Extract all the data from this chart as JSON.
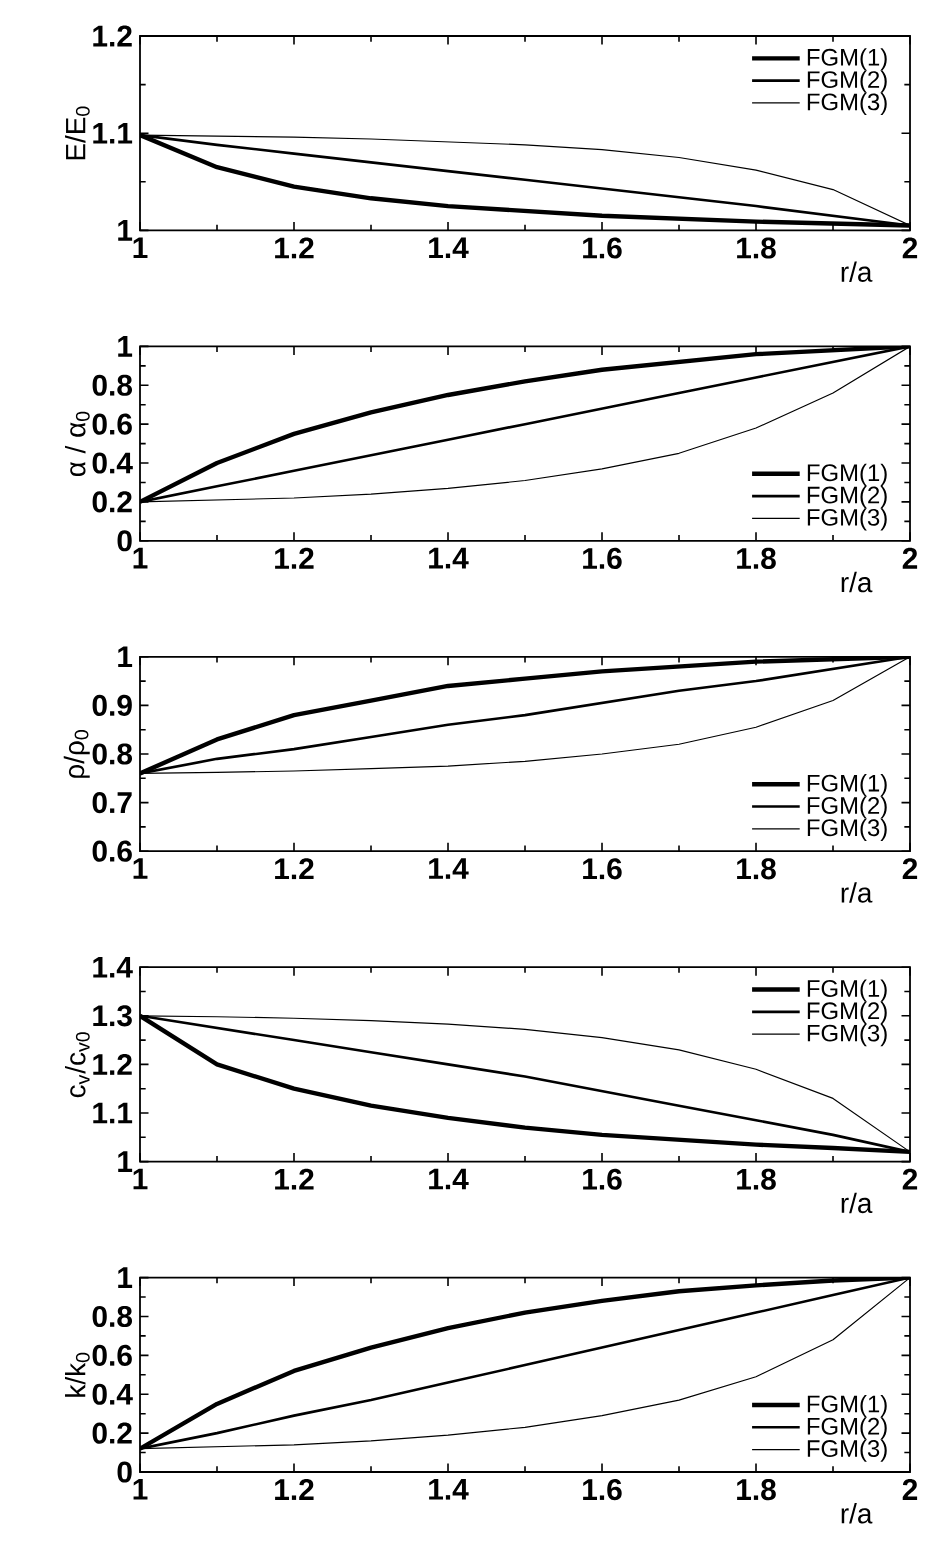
{
  "chart_data": [
    {
      "type": "line",
      "xlabel": "r/a",
      "ylabel": "E/E$_{0}$",
      "x": [
        1,
        1.1,
        1.2,
        1.3,
        1.4,
        1.5,
        1.6,
        1.7,
        1.8,
        1.9,
        2
      ],
      "xlim": [
        1,
        2
      ],
      "ylim": [
        1,
        1.2
      ],
      "xticks": [
        1,
        1.2,
        1.4,
        1.6,
        1.8,
        2
      ],
      "yticks": [
        1,
        1.1,
        1.2
      ],
      "legend": "top right",
      "grid": false,
      "series": [
        {
          "name": "FGM(1)",
          "color": "#000000",
          "values": [
            1.098,
            1.065,
            1.045,
            1.033,
            1.025,
            1.02,
            1.015,
            1.012,
            1.009,
            1.007,
            1.005
          ]
        },
        {
          "name": "FGM(2)",
          "color": "#000000",
          "values": [
            1.098,
            1.088,
            1.079,
            1.07,
            1.061,
            1.052,
            1.043,
            1.034,
            1.025,
            1.015,
            1.005
          ]
        },
        {
          "name": "FGM(3)",
          "color": "#000000",
          "values": [
            1.098,
            1.097,
            1.096,
            1.094,
            1.091,
            1.088,
            1.083,
            1.075,
            1.062,
            1.042,
            1.005
          ]
        }
      ]
    },
    {
      "type": "line",
      "xlabel": "r/a",
      "ylabel": "α / α$_{0}$",
      "x": [
        1,
        1.1,
        1.2,
        1.3,
        1.4,
        1.5,
        1.6,
        1.7,
        1.8,
        1.9,
        2
      ],
      "xlim": [
        1,
        2
      ],
      "ylim": [
        0,
        1
      ],
      "xticks": [
        1,
        1.2,
        1.4,
        1.6,
        1.8,
        2
      ],
      "yticks": [
        0,
        0.2,
        0.4,
        0.6,
        0.8,
        1
      ],
      "legend": "bottom right",
      "grid": false,
      "series": [
        {
          "name": "FGM(1)",
          "color": "#000000",
          "values": [
            0.2,
            0.4,
            0.55,
            0.66,
            0.75,
            0.82,
            0.88,
            0.92,
            0.96,
            0.98,
            1.0
          ]
        },
        {
          "name": "FGM(2)",
          "color": "#000000",
          "values": [
            0.2,
            0.28,
            0.36,
            0.44,
            0.52,
            0.6,
            0.68,
            0.76,
            0.84,
            0.92,
            1.0
          ]
        },
        {
          "name": "FGM(3)",
          "color": "#000000",
          "values": [
            0.2,
            0.21,
            0.22,
            0.24,
            0.27,
            0.31,
            0.37,
            0.45,
            0.58,
            0.76,
            1.0
          ]
        }
      ]
    },
    {
      "type": "line",
      "xlabel": "r/a",
      "ylabel": "ρ/ρ$_{0}$",
      "x": [
        1,
        1.1,
        1.2,
        1.3,
        1.4,
        1.5,
        1.6,
        1.7,
        1.8,
        1.9,
        2
      ],
      "xlim": [
        1,
        2
      ],
      "ylim": [
        0.6,
        1
      ],
      "xticks": [
        1,
        1.2,
        1.4,
        1.6,
        1.8,
        2
      ],
      "yticks": [
        0.6,
        0.7,
        0.8,
        0.9,
        1
      ],
      "legend": "bottom right",
      "grid": false,
      "series": [
        {
          "name": "FGM(1)",
          "color": "#000000",
          "values": [
            0.76,
            0.83,
            0.88,
            0.91,
            0.94,
            0.955,
            0.97,
            0.98,
            0.99,
            0.995,
            1.0
          ]
        },
        {
          "name": "FGM(2)",
          "color": "#000000",
          "values": [
            0.76,
            0.79,
            0.81,
            0.835,
            0.86,
            0.88,
            0.905,
            0.93,
            0.95,
            0.975,
            1.0
          ]
        },
        {
          "name": "FGM(3)",
          "color": "#000000",
          "values": [
            0.76,
            0.762,
            0.765,
            0.77,
            0.775,
            0.785,
            0.8,
            0.82,
            0.855,
            0.91,
            1.0
          ]
        }
      ]
    },
    {
      "type": "line",
      "xlabel": "r/a",
      "ylabel": "c$_{v}$/c$_{v0}$",
      "x": [
        1,
        1.1,
        1.2,
        1.3,
        1.4,
        1.5,
        1.6,
        1.7,
        1.8,
        1.9,
        2
      ],
      "xlim": [
        1,
        2
      ],
      "ylim": [
        1,
        1.4
      ],
      "xticks": [
        1,
        1.2,
        1.4,
        1.6,
        1.8,
        2
      ],
      "yticks": [
        1,
        1.1,
        1.2,
        1.3,
        1.4
      ],
      "legend": "top right",
      "grid": false,
      "series": [
        {
          "name": "FGM(1)",
          "color": "#000000",
          "values": [
            1.3,
            1.2,
            1.15,
            1.115,
            1.09,
            1.07,
            1.055,
            1.045,
            1.035,
            1.028,
            1.02
          ]
        },
        {
          "name": "FGM(2)",
          "color": "#000000",
          "values": [
            1.3,
            1.275,
            1.25,
            1.225,
            1.2,
            1.175,
            1.145,
            1.115,
            1.085,
            1.055,
            1.02
          ]
        },
        {
          "name": "FGM(3)",
          "color": "#000000",
          "values": [
            1.3,
            1.298,
            1.295,
            1.29,
            1.283,
            1.272,
            1.255,
            1.23,
            1.19,
            1.13,
            1.02
          ]
        }
      ]
    },
    {
      "type": "line",
      "xlabel": "r/a",
      "ylabel": "k/k$_{0}$",
      "x": [
        1,
        1.1,
        1.2,
        1.3,
        1.4,
        1.5,
        1.6,
        1.7,
        1.8,
        1.9,
        2
      ],
      "xlim": [
        1,
        2
      ],
      "ylim": [
        0,
        1
      ],
      "xticks": [
        1,
        1.2,
        1.4,
        1.6,
        1.8,
        2
      ],
      "yticks": [
        0,
        0.2,
        0.4,
        0.6,
        0.8,
        1
      ],
      "legend": "bottom right",
      "grid": false,
      "series": [
        {
          "name": "FGM(1)",
          "color": "#000000",
          "values": [
            0.12,
            0.35,
            0.52,
            0.64,
            0.74,
            0.82,
            0.88,
            0.93,
            0.96,
            0.985,
            1.0
          ]
        },
        {
          "name": "FGM(2)",
          "color": "#000000",
          "values": [
            0.12,
            0.2,
            0.29,
            0.37,
            0.46,
            0.55,
            0.64,
            0.73,
            0.82,
            0.91,
            1.0
          ]
        },
        {
          "name": "FGM(3)",
          "color": "#000000",
          "values": [
            0.12,
            0.13,
            0.14,
            0.16,
            0.19,
            0.23,
            0.29,
            0.37,
            0.49,
            0.68,
            1.0
          ]
        }
      ]
    }
  ]
}
